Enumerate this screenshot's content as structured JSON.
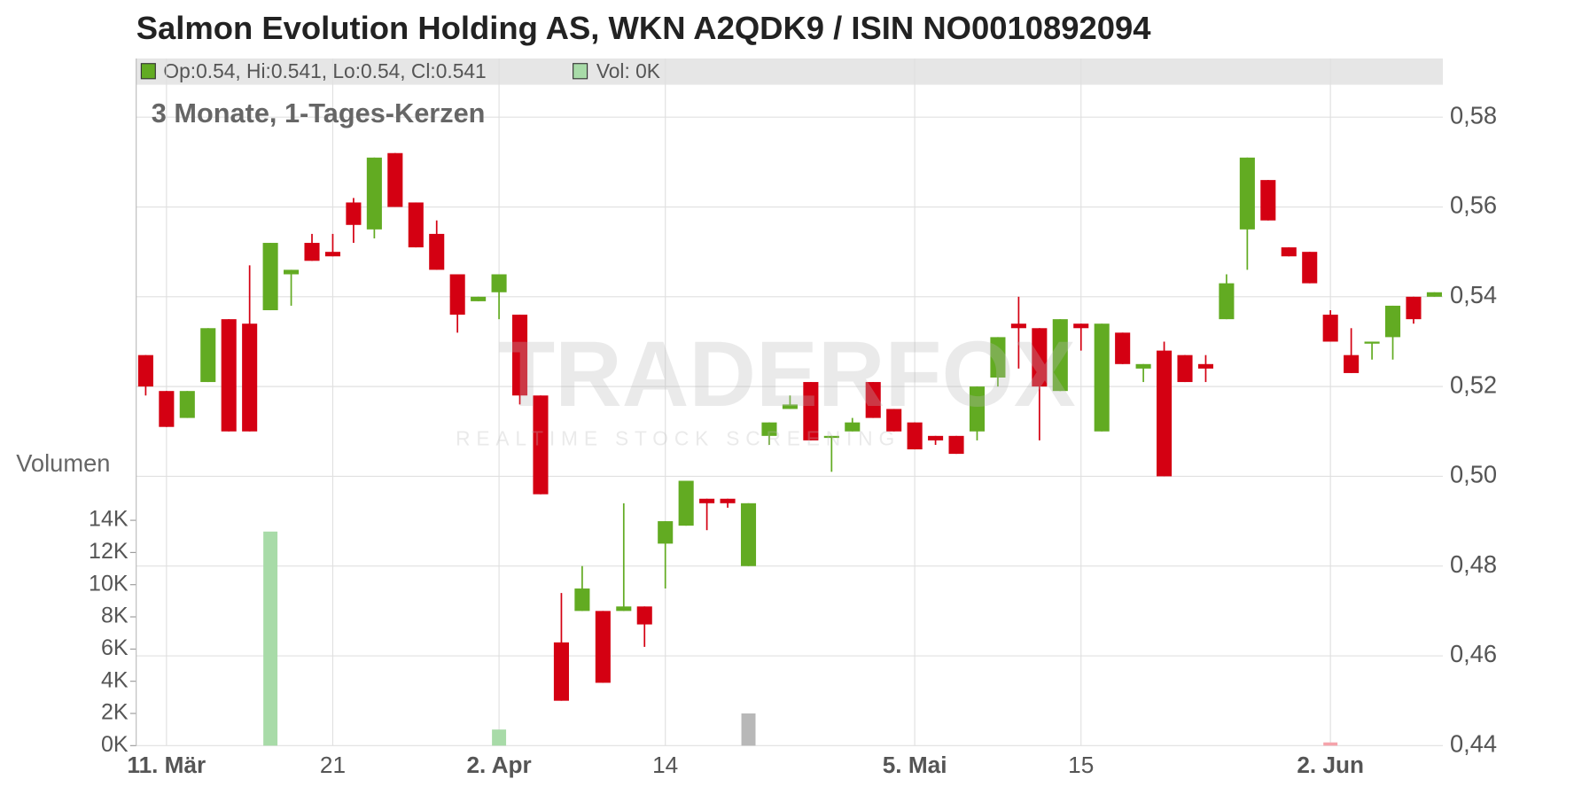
{
  "chart_data": [
    {
      "type": "candlestick",
      "title": "Salmon Evolution Holding AS, WKN A2QDK9 / ISIN NO0010892094",
      "subtitle": "3 Monate, 1-Tages-Kerzen",
      "info": "Op:0.54, Hi:0.541, Lo:0.54, Cl:0.541",
      "volume_info": "Vol: 0K",
      "watermark": [
        "TRADERFOX",
        "REALTIME STOCK SCREENING"
      ],
      "categories": [
        null,
        "11. Mär",
        null,
        null,
        null,
        null,
        null,
        null,
        null,
        "21",
        null,
        null,
        null,
        null,
        null,
        null,
        null,
        "2. Apr",
        null,
        null,
        null,
        null,
        null,
        null,
        null,
        "14",
        null,
        null,
        null,
        null,
        null,
        null,
        null,
        null,
        null,
        null,
        null,
        "5. Mai",
        null,
        null,
        null,
        null,
        null,
        null,
        null,
        "15",
        null,
        null,
        null,
        null,
        null,
        null,
        null,
        null,
        null,
        null,
        null,
        "2. Jun",
        null,
        null,
        null,
        null,
        null
      ],
      "open": [
        0.527,
        0.519,
        0.513,
        0.521,
        0.535,
        0.534,
        0.537,
        0.545,
        0.552,
        0.55,
        0.561,
        0.555,
        0.572,
        0.561,
        0.554,
        0.545,
        0.539,
        0.541,
        0.536,
        0.518,
        0.463,
        0.47,
        0.47,
        0.47,
        0.471,
        0.485,
        0.489,
        0.495,
        0.495,
        0.48,
        0.509,
        0.515,
        0.521,
        0.509,
        0.51,
        0.521,
        0.515,
        0.512,
        0.509,
        0.509,
        0.51,
        0.522,
        0.534,
        0.533,
        0.519,
        0.534,
        0.51,
        0.532,
        0.524,
        0.528,
        0.527,
        0.525,
        0.535,
        0.555,
        0.566,
        0.551,
        0.55,
        0.536,
        0.527,
        0.53,
        0.531,
        0.54,
        0.54
      ],
      "high": [
        0.527,
        0.519,
        0.519,
        0.533,
        0.535,
        0.547,
        0.552,
        0.546,
        0.554,
        0.554,
        0.562,
        0.571,
        0.572,
        0.561,
        0.557,
        0.545,
        0.54,
        0.545,
        0.536,
        0.518,
        0.474,
        0.48,
        0.47,
        0.494,
        0.471,
        0.49,
        0.499,
        0.495,
        0.495,
        0.494,
        0.512,
        0.518,
        0.521,
        0.509,
        0.513,
        0.521,
        0.515,
        0.512,
        0.509,
        0.509,
        0.52,
        0.531,
        0.54,
        0.533,
        0.535,
        0.534,
        0.534,
        0.532,
        0.525,
        0.53,
        0.527,
        0.527,
        0.545,
        0.571,
        0.566,
        0.551,
        0.55,
        0.537,
        0.533,
        0.53,
        0.538,
        0.54,
        0.541
      ],
      "low": [
        0.518,
        0.511,
        0.513,
        0.521,
        0.51,
        0.51,
        0.537,
        0.538,
        0.548,
        0.549,
        0.552,
        0.553,
        0.56,
        0.551,
        0.546,
        0.532,
        0.539,
        0.535,
        0.516,
        0.496,
        0.45,
        0.47,
        0.454,
        0.47,
        0.462,
        0.475,
        0.489,
        0.488,
        0.493,
        0.48,
        0.507,
        0.515,
        0.508,
        0.501,
        0.51,
        0.513,
        0.51,
        0.506,
        0.507,
        0.505,
        0.508,
        0.52,
        0.524,
        0.508,
        0.519,
        0.528,
        0.51,
        0.525,
        0.521,
        0.5,
        0.521,
        0.521,
        0.535,
        0.546,
        0.557,
        0.549,
        0.543,
        0.53,
        0.523,
        0.526,
        0.526,
        0.534,
        0.54
      ],
      "close": [
        0.52,
        0.511,
        0.519,
        0.533,
        0.51,
        0.51,
        0.552,
        0.546,
        0.548,
        0.549,
        0.556,
        0.571,
        0.56,
        0.551,
        0.546,
        0.536,
        0.54,
        0.545,
        0.518,
        0.496,
        0.45,
        0.475,
        0.454,
        0.471,
        0.467,
        0.49,
        0.499,
        0.494,
        0.494,
        0.494,
        0.512,
        0.516,
        0.508,
        0.509,
        0.512,
        0.513,
        0.51,
        0.506,
        0.508,
        0.505,
        0.52,
        0.531,
        0.533,
        0.52,
        0.535,
        0.533,
        0.534,
        0.525,
        0.525,
        0.5,
        0.521,
        0.524,
        0.543,
        0.571,
        0.557,
        0.549,
        0.543,
        0.53,
        0.523,
        0.53,
        0.538,
        0.535,
        0.541
      ],
      "up_color": "#62ab22",
      "down_color": "#d40012",
      "ylim": [
        0.44,
        0.587
      ],
      "yticks": [
        {
          "value": 0.44,
          "label": "0,44"
        },
        {
          "value": 0.46,
          "label": "0,46"
        },
        {
          "value": 0.48,
          "label": "0,48"
        },
        {
          "value": 0.5,
          "label": "0,50"
        },
        {
          "value": 0.52,
          "label": "0,52"
        },
        {
          "value": 0.54,
          "label": "0,54"
        },
        {
          "value": 0.56,
          "label": "0,56"
        },
        {
          "value": 0.58,
          "label": "0,58"
        }
      ],
      "grid": true
    },
    {
      "type": "bar",
      "ylabel": "Volumen",
      "values": [
        0,
        0,
        0,
        0,
        0,
        0,
        13300,
        0,
        0,
        0,
        0,
        0,
        0,
        0,
        0,
        0,
        0,
        1000,
        0,
        0,
        0,
        0,
        0,
        0,
        0,
        0,
        0,
        0,
        0,
        2000,
        0,
        0,
        0,
        0,
        0,
        0,
        0,
        0,
        0,
        0,
        0,
        0,
        0,
        0,
        0,
        0,
        0,
        0,
        0,
        0,
        0,
        0,
        0,
        0,
        0,
        0,
        0,
        200,
        0,
        0,
        0,
        0,
        0
      ],
      "colors": [
        "#f5a3ab",
        "#f5a3ab",
        "#a8dba8",
        "#a8dba8",
        "#f5a3ab",
        "#f5a3ab",
        "#a8dba8",
        "#a8dba8",
        "#f5a3ab",
        "#f5a3ab",
        "#f5a3ab",
        "#a8dba8",
        "#f5a3ab",
        "#f5a3ab",
        "#f5a3ab",
        "#f5a3ab",
        "#a8dba8",
        "#a8dba8",
        "#f5a3ab",
        "#f5a3ab",
        "#f5a3ab",
        "#a8dba8",
        "#f5a3ab",
        "#a8dba8",
        "#f5a3ab",
        "#a8dba8",
        "#a8dba8",
        "#f5a3ab",
        "#f5a3ab",
        "#b8b8b8",
        "#a8dba8",
        "#a8dba8",
        "#f5a3ab",
        "#a8dba8",
        "#a8dba8",
        "#f5a3ab",
        "#f5a3ab",
        "#f5a3ab",
        "#f5a3ab",
        "#f5a3ab",
        "#a8dba8",
        "#a8dba8",
        "#f5a3ab",
        "#f5a3ab",
        "#a8dba8",
        "#f5a3ab",
        "#a8dba8",
        "#f5a3ab",
        "#a8dba8",
        "#f5a3ab",
        "#f5a3ab",
        "#f5a3ab",
        "#a8dba8",
        "#a8dba8",
        "#f5a3ab",
        "#f5a3ab",
        "#f5a3ab",
        "#f5a3ab",
        "#f5a3ab",
        "#a8dba8",
        "#a8dba8",
        "#f5a3ab",
        "#a8dba8"
      ],
      "ylim": [
        0,
        16800
      ],
      "yticks": [
        {
          "value": 0,
          "label": "0K"
        },
        {
          "value": 2000,
          "label": "2K"
        },
        {
          "value": 4000,
          "label": "4K"
        },
        {
          "value": 6000,
          "label": "6K"
        },
        {
          "value": 8000,
          "label": "8K"
        },
        {
          "value": 10000,
          "label": "10K"
        },
        {
          "value": 12000,
          "label": "12K"
        },
        {
          "value": 14000,
          "label": "14K"
        }
      ]
    }
  ]
}
